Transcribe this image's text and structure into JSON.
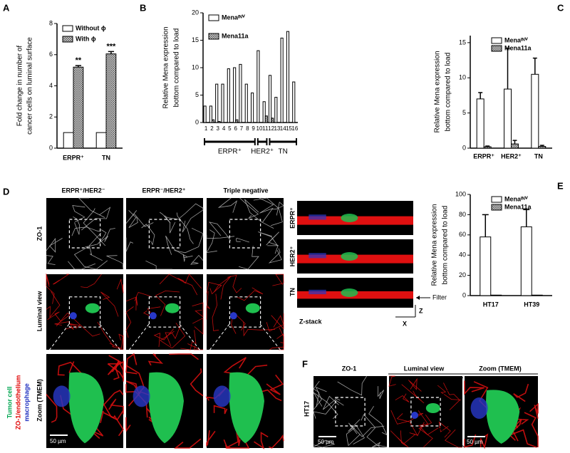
{
  "chart_data": [
    {
      "type": "bar",
      "label": "A",
      "ylabel": [
        "Fold change in number of",
        "cancer cells on luminal surface"
      ],
      "categories": [
        "ERPR⁺",
        "TN"
      ],
      "series": [
        {
          "name": "Without ϕ",
          "color": "#ffffff",
          "values": [
            1,
            1
          ]
        },
        {
          "name": "With ϕ",
          "color": "#777777",
          "hatch": true,
          "values": [
            5.2,
            6.05
          ],
          "errors": [
            0.1,
            0.15
          ],
          "annotations": [
            "**",
            "***"
          ]
        }
      ],
      "ylim": [
        0,
        8
      ],
      "yticks": [
        0,
        2,
        4,
        6,
        8
      ],
      "legend": "upper left"
    },
    {
      "type": "bar",
      "label": "B",
      "ylabel": [
        "Relative Mena expression",
        "bottom compared to load"
      ],
      "categories": [
        "1",
        "2",
        "3",
        "4",
        "5",
        "6",
        "7",
        "8",
        "9",
        "10",
        "11",
        "12",
        "13",
        "14",
        "15",
        "16"
      ],
      "series": [
        {
          "name": "Menaᴵᴺⱽ",
          "color": "#ffffff",
          "values": [
            3,
            3,
            7,
            7,
            9.8,
            10,
            10.6,
            7,
            5.4,
            13.1,
            3.8,
            8.6,
            4.6,
            15.4,
            16.6,
            7.4
          ]
        },
        {
          "name": "Mena11a",
          "color": "#777777",
          "hatch": true,
          "values": [
            0,
            0.5,
            0.2,
            0,
            0,
            0.5,
            0,
            0,
            0,
            0,
            1.2,
            0.8,
            0,
            0,
            0,
            0
          ]
        }
      ],
      "groups": [
        {
          "label": "ERPR⁺",
          "from": "1",
          "to": "9"
        },
        {
          "label": "HER2⁺",
          "from": "10",
          "to": "11"
        },
        {
          "label": "TN",
          "from": "12",
          "to": "16"
        }
      ],
      "ylim": [
        0,
        20
      ],
      "yticks": [
        0,
        5,
        10,
        15,
        20
      ],
      "legend": "upper left"
    },
    {
      "type": "bar",
      "label": "C",
      "ylabel": [
        "Relative Mena expression",
        "bottom compared to load"
      ],
      "categories": [
        "ERPR⁺",
        "HER2⁺",
        "TN"
      ],
      "series": [
        {
          "name": "Menaᴵᴺⱽ",
          "color": "#ffffff",
          "values": [
            7,
            8.4,
            10.5
          ],
          "errors": [
            0.9,
            5.8,
            2.3
          ]
        },
        {
          "name": "Mena11a",
          "color": "#777777",
          "hatch": true,
          "values": [
            0.2,
            0.6,
            0.25
          ],
          "errors": [
            0.1,
            0.5,
            0.15
          ]
        }
      ],
      "ylim": [
        0,
        16
      ],
      "yticks": [
        0,
        5,
        10,
        15
      ],
      "legend": "upper right"
    },
    {
      "type": "bar",
      "label": "E",
      "ylabel": [
        "Relative Mena expression",
        "bottom compared to load"
      ],
      "categories": [
        "HT17",
        "HT39"
      ],
      "series": [
        {
          "name": "Menaᴵᴺⱽ",
          "color": "#ffffff",
          "values": [
            58,
            68
          ],
          "errors": [
            22,
            17
          ]
        },
        {
          "name": "Mena11a",
          "color": "#777777",
          "hatch": true,
          "values": [
            0.5,
            0.5
          ]
        }
      ],
      "ylim": [
        0,
        100
      ],
      "yticks": [
        0,
        20,
        40,
        60,
        80,
        100
      ],
      "legend": "upper right"
    }
  ],
  "panel_d": {
    "label": "D",
    "columns": [
      "ERPR⁺/HER2⁻",
      "ERPR⁻/HER2⁺",
      "Triple negative"
    ],
    "rows": [
      "ZO-1",
      "Luminal view",
      "Zoom (TMEM)"
    ],
    "stain_legend": [
      "Tumor cell",
      "ZO-1/endothelium",
      "macrophage"
    ],
    "scale_bar": "50 µm",
    "zstack": {
      "rows": [
        "ERPR⁺",
        "HER2⁺",
        "TN"
      ],
      "filter": "Filter",
      "z": "Z",
      "x": "X",
      "title": "Z-stack"
    }
  },
  "panel_f": {
    "label": "F",
    "columns": [
      "ZO-1",
      "Luminal view",
      "Zoom (TMEM)"
    ],
    "row": "HT17",
    "scale_bar": "50 µm"
  }
}
